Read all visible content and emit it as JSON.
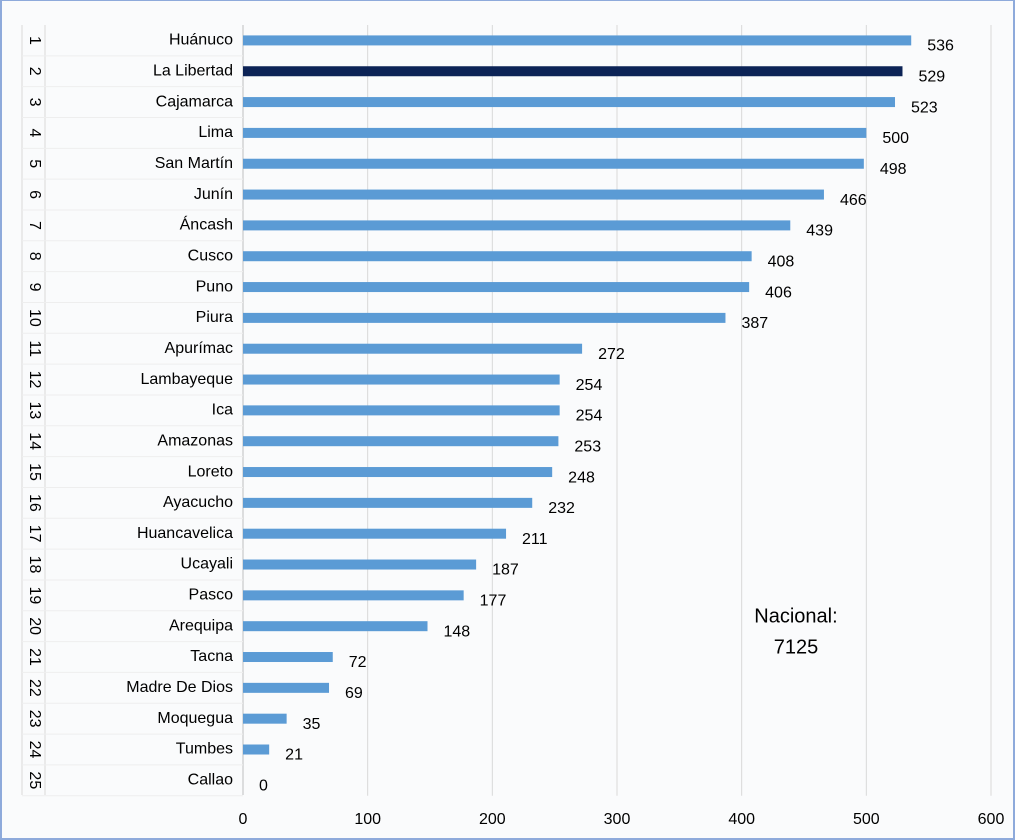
{
  "chart_data": {
    "type": "bar",
    "ranks": [
      1,
      2,
      3,
      4,
      5,
      6,
      7,
      8,
      9,
      10,
      11,
      12,
      13,
      14,
      15,
      16,
      17,
      18,
      19,
      20,
      21,
      22,
      23,
      24,
      25
    ],
    "categories": [
      "Huánuco",
      "La Libertad",
      "Cajamarca",
      "Lima",
      "San Martín",
      "Junín",
      "Áncash",
      "Cusco",
      "Puno",
      "Piura",
      "Apurímac",
      "Lambayeque",
      "Ica",
      "Amazonas",
      "Loreto",
      "Ayacucho",
      "Huancavelica",
      "Ucayali",
      "Pasco",
      "Arequipa",
      "Tacna",
      "Madre De Dios",
      "Moquegua",
      "Tumbes",
      "Callao"
    ],
    "values": [
      536,
      529,
      523,
      500,
      498,
      466,
      439,
      408,
      406,
      387,
      272,
      254,
      254,
      253,
      248,
      232,
      211,
      187,
      177,
      148,
      72,
      69,
      35,
      21,
      0
    ],
    "colors": [
      "#5b9bd5",
      "#0c2356",
      "#5b9bd5",
      "#5b9bd5",
      "#5b9bd5",
      "#5b9bd5",
      "#5b9bd5",
      "#5b9bd5",
      "#5b9bd5",
      "#5b9bd5",
      "#5b9bd5",
      "#5b9bd5",
      "#5b9bd5",
      "#5b9bd5",
      "#5b9bd5",
      "#5b9bd5",
      "#5b9bd5",
      "#5b9bd5",
      "#5b9bd5",
      "#5b9bd5",
      "#5b9bd5",
      "#5b9bd5",
      "#5b9bd5",
      "#5b9bd5",
      "#5b9bd5"
    ],
    "xlim": [
      0,
      600
    ],
    "xticks": [
      0,
      100,
      200,
      300,
      400,
      500,
      600
    ],
    "grid": true,
    "annotation": [
      "Nacional:",
      "7125"
    ],
    "annotation_color": "#c00000"
  }
}
